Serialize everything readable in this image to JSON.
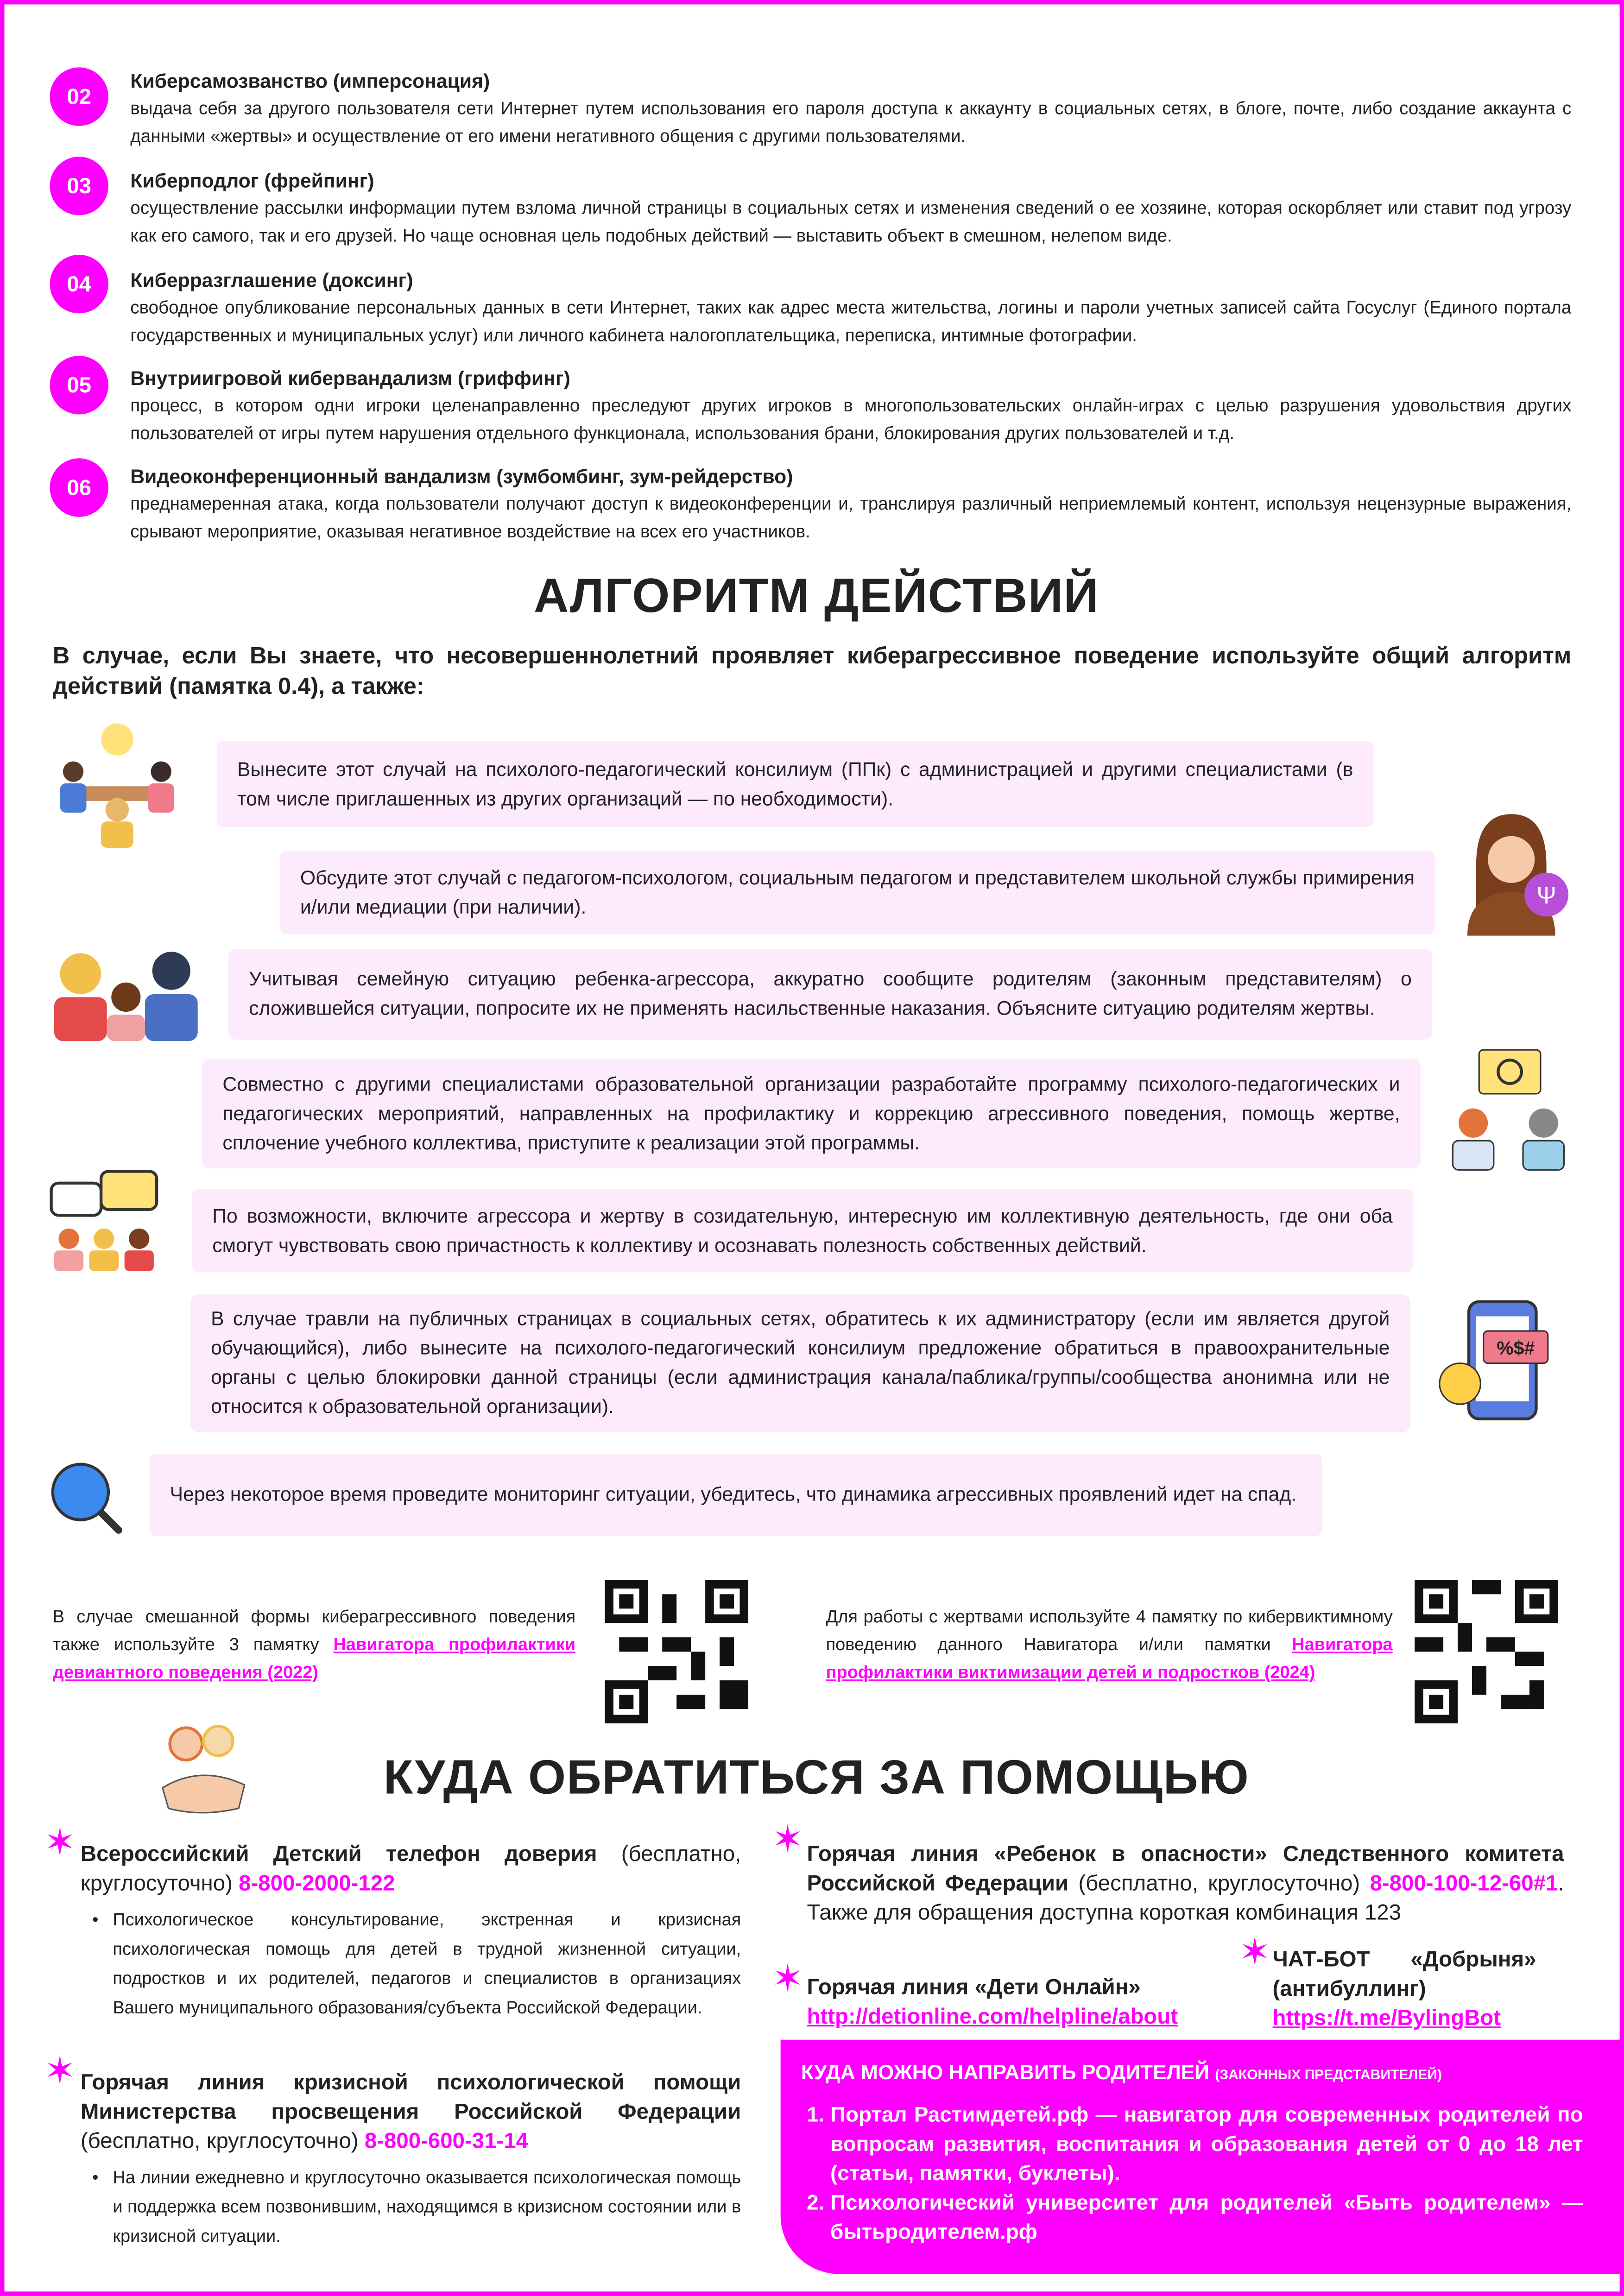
{
  "definitions": [
    {
      "num": "02",
      "title": "Киберсамозванство (имперсонация)",
      "text": "выдача себя за другого пользователя сети Интернет путем использования его пароля доступа к аккаунту в социальных сетях, в блоге, почте, либо создание аккаунта с данными «жертвы» и осуществление от его имени негативного общения с другими пользователями."
    },
    {
      "num": "03",
      "title": "Киберподлог (фрейпинг)",
      "text": "осуществление рассылки информации путем взлома личной страницы в социальных сетях и изменения сведений о ее хозяине, которая оскорбляет или ставит под угрозу как его самого, так и его друзей. Но чаще основная цель подобных действий — выставить объект в смешном, нелепом виде."
    },
    {
      "num": "04",
      "title": "Киберразглашение (доксинг)",
      "text": "свободное опубликование персональных данных в сети Интернет, таких как адрес места жительства, логины и пароли учетных записей сайта Госуслуг (Единого портала государственных и муниципальных услуг) или личного кабинета налогоплательщика, переписка, интимные фотографии."
    },
    {
      "num": "05",
      "title": "Внутриигровой кибервандализм (гриффинг)",
      "text": "процесс, в котором одни игроки целенаправленно преследуют других игроков в многопользовательских онлайн-играх с целью разрушения удовольствия других пользователей от игры путем нарушения отдельного функционала, использования брани, блокирования других пользователей и т.д."
    },
    {
      "num": "06",
      "title": "Видеоконференционный вандализм (зумбомбинг, зум-рейдерство)",
      "text": "преднамеренная атака, когда пользователи получают доступ к видеоконференции и, транслируя различный неприемлемый контент, используя нецензурные выражения, срывают мероприятие, оказывая негативное воздействие на всех его участников."
    }
  ],
  "algorithm": {
    "heading": "АЛГОРИТМ ДЕЙСТВИЙ",
    "intro": "В случае, если Вы знаете, что несовершеннолетний проявляет киберагрессивное поведение используйте общий алгоритм действий (памятка 0.4), а также:",
    "steps": [
      "Вынесите этот случай на психолого-педагогический консилиум (ППк) с администрацией и другими специалистами (в том числе приглашенных из других организаций — по необходимости).",
      "Обсудите этот случай с педагогом-психологом, социальным педагогом и представителем школьной службы примирения и/или медиации (при наличии).",
      "Учитывая семейную ситуацию ребенка-агрессора, аккуратно сообщите родителям (законным представителям) о сложившейся ситуации, попросите их не применять насильственные наказания. Объясните ситуацию родителям жертвы.",
      "Совместно с другими специалистами образовательной организации разработайте программу психолого-педагогических и педагогических мероприятий, направленных на профилактику и коррекцию агрессивного поведения, помощь жертве, сплочение учебного коллектива, приступите к реализации этой программы.",
      "По возможности, включите агрессора и жертву в созидательную, интересную им коллективную деятельность, где они оба смогут чувствовать свою причастность к коллективу и осознавать полезность собственных действий.",
      "В случае травли на публичных страницах в социальных сетях, обратитесь к их администратору (если им является другой обучающийся), либо вынесите на психолого-педагогический консилиум предложение обратиться в правоохранительные органы с целью блокировки данной страницы (если администрация канала/паблика/группы/сообщества анонимна или не относится к образовательной организации).",
      "Через некоторое время проведите мониторинг ситуации, убедитесь, что динамика агрессивных проявлений идет на спад."
    ]
  },
  "qr": {
    "left_text": "В случае смешанной формы киберагрессивного поведения также используйте 3 памятку",
    "left_link": "Навигатора профилактики девиантного поведения (2022)",
    "right_text": "Для работы с жертвами используйте 4 памятку по кибервиктимному поведению данного Навигатора и/или памятки",
    "right_link": "Навигатора профилактики виктимизации детей и подростков (2024)"
  },
  "help": {
    "heading": "КУДА ОБРАТИТЬСЯ ЗА ПОМОЩЬЮ",
    "hotline1": {
      "title": "Всероссийский Детский телефон доверия",
      "note": "(бесплатно, круглосуточно)",
      "phone": "8-800-2000-122",
      "bullet": "Психологическое консультирование, экстренная и кризисная психологическая помощь для детей в трудной жизненной ситуации, подростков и их родителей, педагогов и специалистов в организациях Вашего муниципального образования/субъекта Российской Федерации."
    },
    "hotline2": {
      "title": "Горячая линия кризисной психологической помощи Министерства просвещения Российской Федерации",
      "note": "(бесплатно, круглосуточно)",
      "phone": "8-800-600-31-14",
      "bullet": "На линии ежедневно и круглосуточно оказывается психологическая помощь и поддержка всем позвонившим, находящимся в кризисном состоянии или в кризисной ситуации."
    },
    "hotline3": {
      "title": "Горячая линия «Ребенок в опасности» Следственного комитета Российской Федерации",
      "note": "(бесплатно, круглосуточно)",
      "phone": "8-800-100-12-60#1",
      "extra": ". Также для обращения доступна короткая комбинация 123"
    },
    "hotline4": {
      "title": "Горячая линия «Дети Онлайн»",
      "link": "http://detionline.com/helpline/about"
    },
    "chatbot": {
      "title": "ЧАТ-БОТ «Добрыня» (антибуллинг)",
      "link": "https://t.me/BylingBot"
    },
    "parents": {
      "title": "КУДА МОЖНО НАПРАВИТЬ РОДИТЕЛЕЙ",
      "title_small": "(ЗАКОННЫХ ПРЕДСТАВИТЕЛЕЙ)",
      "items": [
        "Портал Растимдетей.рф — навигатор для современных родителей по вопросам развития, воспитания и образования детей от 0 до 18 лет (статьи, памятки, буклеты).",
        "Психологический университет для родителей «Быть родителем» — бытьродителем.рф"
      ]
    }
  },
  "colors": {
    "accent": "#ff00ff",
    "box_bg": "#fdeafd",
    "text": "#222222"
  }
}
